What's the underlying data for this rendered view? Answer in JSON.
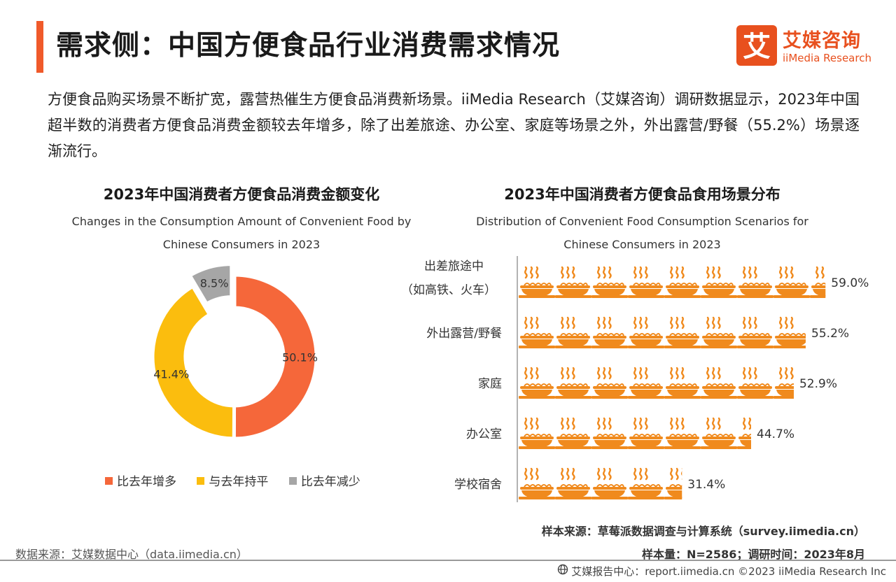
{
  "header": {
    "title": "需求侧：中国方便食品行业消费需求情况",
    "brand_cn": "艾媒咨询",
    "brand_en": "iiMedia Research",
    "brand_logo_char": "艾"
  },
  "intro": "方便食品购买场景不断扩宽，露营热催生方便食品消费新场景。iiMedia Research（艾媒咨询）调研数据显示，2023年中国超半数的消费者方便食品消费金额较去年增多，除了出差旅途、办公室、家庭等场景之外，外出露营/野餐（55.2%）场景逐渐流行。",
  "left_chart": {
    "title": "2023年中国消费者方便食品消费金额变化",
    "subtitle_line1": "Changes in the Consumption Amount of Convenient Food by",
    "subtitle_line2": "Chinese Consumers in 2023"
  },
  "right_chart": {
    "title": "2023年中国消费者方便食品食用场景分布",
    "subtitle_line1": "Distribution of Convenient Food Consumption Scenarios for",
    "subtitle_line2": "Chinese Consumers in 2023"
  },
  "legend": [
    {
      "label": "比去年增多",
      "color": "#f5673a"
    },
    {
      "label": "与去年持平",
      "color": "#fbbd0e"
    },
    {
      "label": "比去年减少",
      "color": "#a6a6a6"
    }
  ],
  "chart_data": [
    {
      "type": "pie",
      "title": "2023年中国消费者方便食品消费金额变化",
      "categories": [
        "比去年增多",
        "与去年持平",
        "比去年减少"
      ],
      "values": [
        50.1,
        41.4,
        8.5
      ],
      "value_labels": [
        "50.1%",
        "41.4%",
        "8.5%"
      ],
      "colors": [
        "#f5673a",
        "#fbbd0e",
        "#a6a6a6"
      ],
      "donut": true,
      "legend": "bottom"
    },
    {
      "type": "bar",
      "orientation": "horizontal",
      "title": "2023年中国消费者方便食品食用场景分布",
      "categories": [
        [
          "出差旅途中",
          "（如高铁、火车）"
        ],
        [
          "外出露营/野餐"
        ],
        [
          "家庭"
        ],
        [
          "办公室"
        ],
        [
          "学校宿舍"
        ]
      ],
      "values": [
        59.0,
        55.2,
        52.9,
        44.7,
        31.4
      ],
      "value_labels": [
        "59.0%",
        "55.2%",
        "52.9%",
        "44.7%",
        "31.4%"
      ],
      "unit": "%",
      "marker": "noodle-bowl-icon",
      "color": "#f08a1d"
    }
  ],
  "sources": {
    "sample_source": "样本来源：草莓派数据调查与计算系统（survey.iimedia.cn）",
    "sample_info": "样本量：N=2586；调研时间：2023年8月",
    "data_source": "数据来源：艾媒数据中心（data.iimedia.cn）",
    "footer": "艾媒报告中心：report.iimedia.cn  ©2023  iiMedia Research  Inc"
  }
}
